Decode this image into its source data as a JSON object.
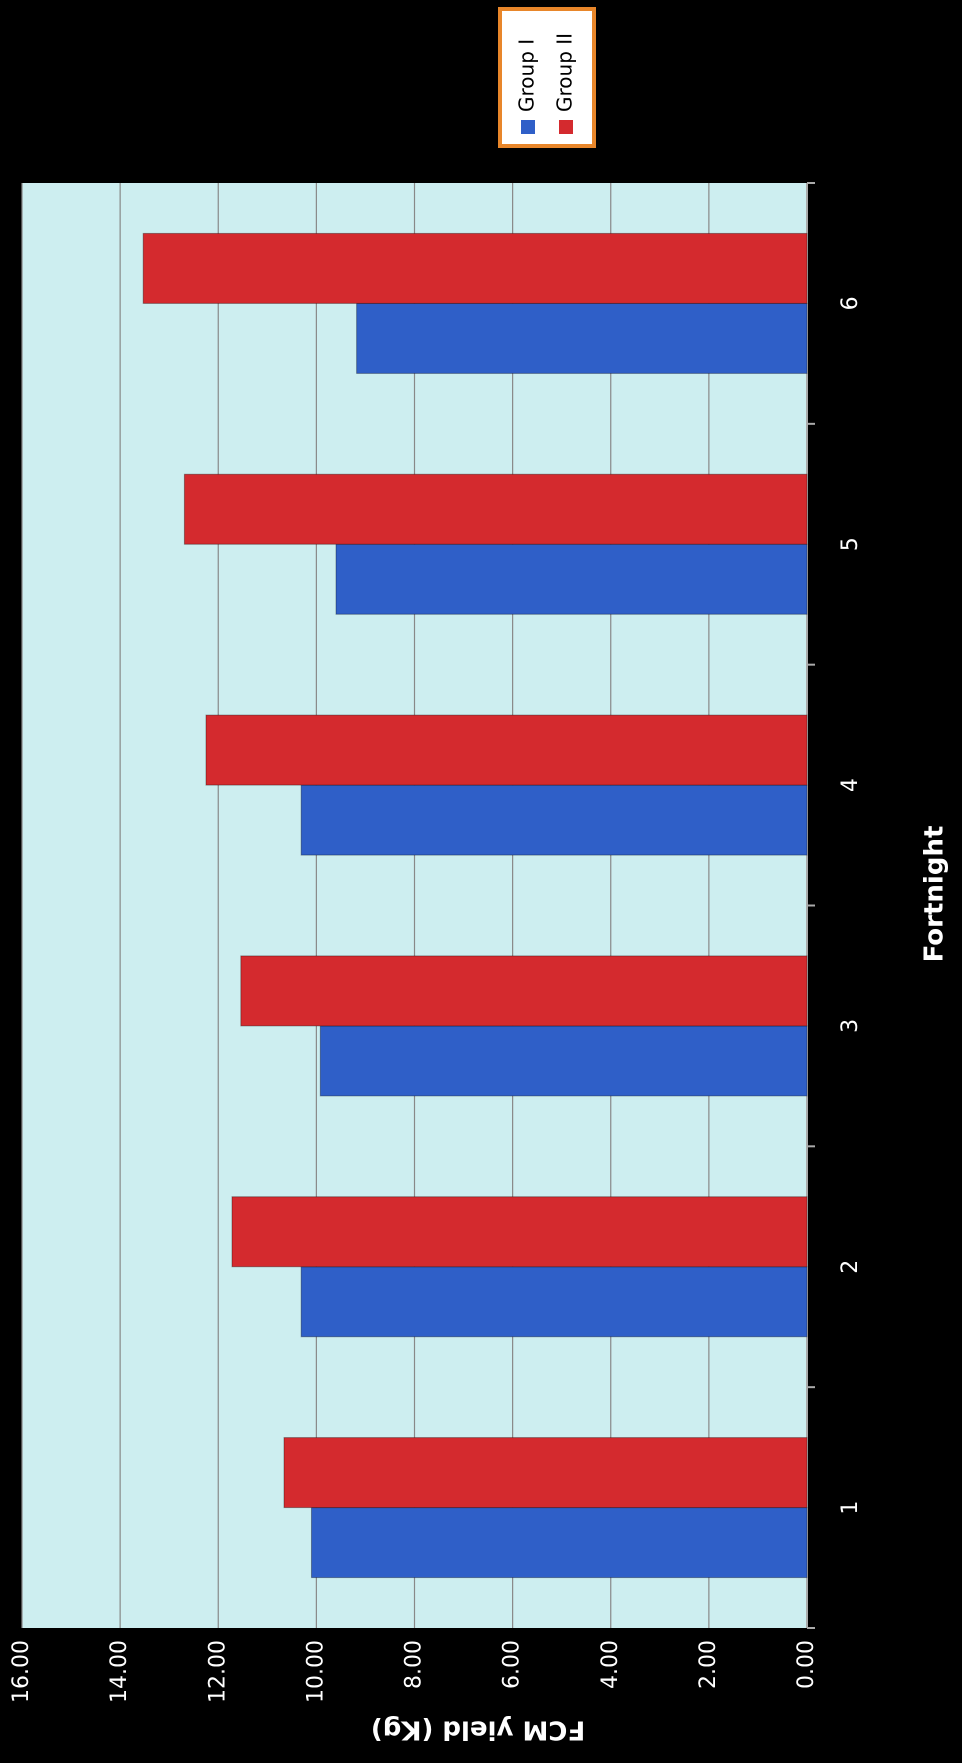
{
  "chart_data": {
    "type": "bar",
    "x_label": "Fortnight",
    "y_label": "FCM yield (Kg)",
    "categories": [
      "1",
      "2",
      "3",
      "4",
      "5",
      "6"
    ],
    "series": [
      {
        "name": "Group I",
        "color": "#2f5fc8",
        "values": [
          10.1,
          10.31,
          9.92,
          10.31,
          9.6,
          9.18
        ]
      },
      {
        "name": "Group II",
        "color": "#d42a2e",
        "values": [
          10.66,
          11.72,
          11.54,
          12.25,
          12.69,
          13.53
        ]
      }
    ],
    "ylim": [
      0,
      16
    ],
    "yticks": [
      {
        "value": 0,
        "label": "0.00"
      },
      {
        "value": 2,
        "label": "2.00"
      },
      {
        "value": 4,
        "label": "4.00"
      },
      {
        "value": 6,
        "label": "6.00"
      },
      {
        "value": 8,
        "label": "8.00"
      },
      {
        "value": 10,
        "label": "10.00"
      },
      {
        "value": 12,
        "label": "12.00"
      },
      {
        "value": 14,
        "label": "14.00"
      },
      {
        "value": 16,
        "label": "16.00"
      }
    ],
    "grid": true,
    "legend": "upper right"
  }
}
